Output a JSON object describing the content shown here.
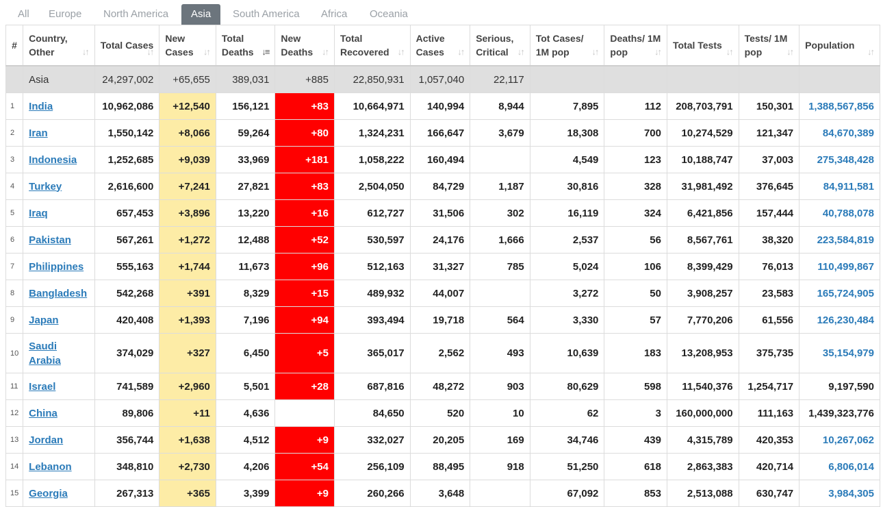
{
  "tabs": [
    {
      "label": "All"
    },
    {
      "label": "Europe"
    },
    {
      "label": "North America"
    },
    {
      "label": "Asia",
      "active": true
    },
    {
      "label": "South America"
    },
    {
      "label": "Africa"
    },
    {
      "label": "Oceania"
    }
  ],
  "columns": [
    {
      "label": "#"
    },
    {
      "label": "Country, Other"
    },
    {
      "label": "Total Cases"
    },
    {
      "label": "New Cases"
    },
    {
      "label": "Total Deaths",
      "sorted": true
    },
    {
      "label": "New Deaths"
    },
    {
      "label": "Total Recovered"
    },
    {
      "label": "Active Cases"
    },
    {
      "label": "Serious, Critical"
    },
    {
      "label": "Tot Cases/ 1M pop"
    },
    {
      "label": "Deaths/ 1M pop"
    },
    {
      "label": "Total Tests"
    },
    {
      "label": "Tests/ 1M pop"
    },
    {
      "label": "Population"
    }
  ],
  "total_row": {
    "country": "Asia",
    "total_cases": "24,297,002",
    "new_cases": "+65,655",
    "total_deaths": "389,031",
    "new_deaths": "+885",
    "total_recovered": "22,850,931",
    "active_cases": "1,057,040",
    "serious": "22,117",
    "cases_1m": "",
    "deaths_1m": "",
    "total_tests": "",
    "tests_1m": "",
    "population": ""
  },
  "rows": [
    {
      "idx": "1",
      "country": "India",
      "total_cases": "10,962,086",
      "new_cases": "+12,540",
      "total_deaths": "156,121",
      "new_deaths": "+83",
      "total_recovered": "10,664,971",
      "active_cases": "140,994",
      "serious": "8,944",
      "cases_1m": "7,895",
      "deaths_1m": "112",
      "total_tests": "208,703,791",
      "tests_1m": "150,301",
      "population": "1,388,567,856"
    },
    {
      "idx": "2",
      "country": "Iran",
      "total_cases": "1,550,142",
      "new_cases": "+8,066",
      "total_deaths": "59,264",
      "new_deaths": "+80",
      "total_recovered": "1,324,231",
      "active_cases": "166,647",
      "serious": "3,679",
      "cases_1m": "18,308",
      "deaths_1m": "700",
      "total_tests": "10,274,529",
      "tests_1m": "121,347",
      "population": "84,670,389"
    },
    {
      "idx": "3",
      "country": "Indonesia",
      "total_cases": "1,252,685",
      "new_cases": "+9,039",
      "total_deaths": "33,969",
      "new_deaths": "+181",
      "total_recovered": "1,058,222",
      "active_cases": "160,494",
      "serious": "",
      "cases_1m": "4,549",
      "deaths_1m": "123",
      "total_tests": "10,188,747",
      "tests_1m": "37,003",
      "population": "275,348,428"
    },
    {
      "idx": "4",
      "country": "Turkey",
      "total_cases": "2,616,600",
      "new_cases": "+7,241",
      "total_deaths": "27,821",
      "new_deaths": "+83",
      "total_recovered": "2,504,050",
      "active_cases": "84,729",
      "serious": "1,187",
      "cases_1m": "30,816",
      "deaths_1m": "328",
      "total_tests": "31,981,492",
      "tests_1m": "376,645",
      "population": "84,911,581"
    },
    {
      "idx": "5",
      "country": "Iraq",
      "total_cases": "657,453",
      "new_cases": "+3,896",
      "total_deaths": "13,220",
      "new_deaths": "+16",
      "total_recovered": "612,727",
      "active_cases": "31,506",
      "serious": "302",
      "cases_1m": "16,119",
      "deaths_1m": "324",
      "total_tests": "6,421,856",
      "tests_1m": "157,444",
      "population": "40,788,078"
    },
    {
      "idx": "6",
      "country": "Pakistan",
      "total_cases": "567,261",
      "new_cases": "+1,272",
      "total_deaths": "12,488",
      "new_deaths": "+52",
      "total_recovered": "530,597",
      "active_cases": "24,176",
      "serious": "1,666",
      "cases_1m": "2,537",
      "deaths_1m": "56",
      "total_tests": "8,567,761",
      "tests_1m": "38,320",
      "population": "223,584,819"
    },
    {
      "idx": "7",
      "country": "Philippines",
      "total_cases": "555,163",
      "new_cases": "+1,744",
      "total_deaths": "11,673",
      "new_deaths": "+96",
      "total_recovered": "512,163",
      "active_cases": "31,327",
      "serious": "785",
      "cases_1m": "5,024",
      "deaths_1m": "106",
      "total_tests": "8,399,429",
      "tests_1m": "76,013",
      "population": "110,499,867"
    },
    {
      "idx": "8",
      "country": "Bangladesh",
      "total_cases": "542,268",
      "new_cases": "+391",
      "total_deaths": "8,329",
      "new_deaths": "+15",
      "total_recovered": "489,932",
      "active_cases": "44,007",
      "serious": "",
      "cases_1m": "3,272",
      "deaths_1m": "50",
      "total_tests": "3,908,257",
      "tests_1m": "23,583",
      "population": "165,724,905"
    },
    {
      "idx": "9",
      "country": "Japan",
      "total_cases": "420,408",
      "new_cases": "+1,393",
      "total_deaths": "7,196",
      "new_deaths": "+94",
      "total_recovered": "393,494",
      "active_cases": "19,718",
      "serious": "564",
      "cases_1m": "3,330",
      "deaths_1m": "57",
      "total_tests": "7,770,206",
      "tests_1m": "61,556",
      "population": "126,230,484"
    },
    {
      "idx": "10",
      "country": "Saudi Arabia",
      "total_cases": "374,029",
      "new_cases": "+327",
      "total_deaths": "6,450",
      "new_deaths": "+5",
      "total_recovered": "365,017",
      "active_cases": "2,562",
      "serious": "493",
      "cases_1m": "10,639",
      "deaths_1m": "183",
      "total_tests": "13,208,953",
      "tests_1m": "375,735",
      "population": "35,154,979",
      "tall": true
    },
    {
      "idx": "11",
      "country": "Israel",
      "total_cases": "741,589",
      "new_cases": "+2,960",
      "total_deaths": "5,501",
      "new_deaths": "+28",
      "total_recovered": "687,816",
      "active_cases": "48,272",
      "serious": "903",
      "cases_1m": "80,629",
      "deaths_1m": "598",
      "total_tests": "11,540,376",
      "tests_1m": "1,254,717",
      "population": "9,197,590",
      "pop_plain": true
    },
    {
      "idx": "12",
      "country": "China",
      "total_cases": "89,806",
      "new_cases": "+11",
      "total_deaths": "4,636",
      "new_deaths": "",
      "total_recovered": "84,650",
      "active_cases": "520",
      "serious": "10",
      "cases_1m": "62",
      "deaths_1m": "3",
      "total_tests": "160,000,000",
      "tests_1m": "111,163",
      "population": "1,439,323,776",
      "pop_plain": true
    },
    {
      "idx": "13",
      "country": "Jordan",
      "total_cases": "356,744",
      "new_cases": "+1,638",
      "total_deaths": "4,512",
      "new_deaths": "+9",
      "total_recovered": "332,027",
      "active_cases": "20,205",
      "serious": "169",
      "cases_1m": "34,746",
      "deaths_1m": "439",
      "total_tests": "4,315,789",
      "tests_1m": "420,353",
      "population": "10,267,062"
    },
    {
      "idx": "14",
      "country": "Lebanon",
      "total_cases": "348,810",
      "new_cases": "+2,730",
      "total_deaths": "4,206",
      "new_deaths": "+54",
      "total_recovered": "256,109",
      "active_cases": "88,495",
      "serious": "918",
      "cases_1m": "51,250",
      "deaths_1m": "618",
      "total_tests": "2,863,383",
      "tests_1m": "420,714",
      "population": "6,806,014"
    },
    {
      "idx": "15",
      "country": "Georgia",
      "total_cases": "267,313",
      "new_cases": "+365",
      "total_deaths": "3,399",
      "new_deaths": "+9",
      "total_recovered": "260,266",
      "active_cases": "3,648",
      "serious": "",
      "cases_1m": "67,092",
      "deaths_1m": "853",
      "total_tests": "2,513,088",
      "tests_1m": "630,747",
      "population": "3,984,305"
    }
  ],
  "colors": {
    "new_cases_bg": "#fdeca6",
    "new_deaths_bg": "#ff0000",
    "link": "#2b7bb9",
    "tab_active": "#6c757d",
    "total_row_bg": "#dfdfdf"
  },
  "icons": {
    "sort": "sort-arrows-icon"
  }
}
